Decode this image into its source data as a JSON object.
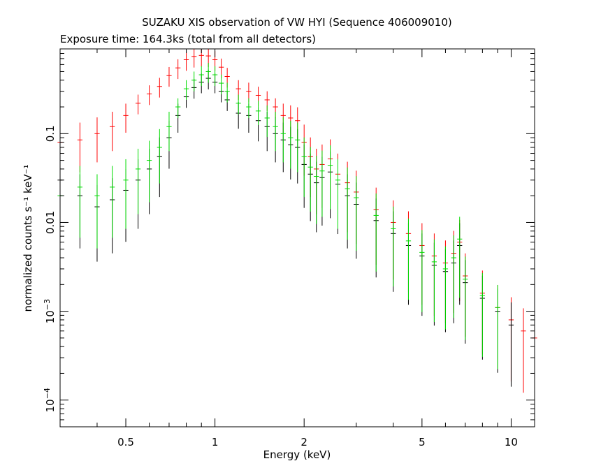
{
  "chart_data": {
    "type": "scatter",
    "title": "SUZAKU XIS observation of VW HYI (Sequence 406009010)",
    "subtitle": "Exposure time: 164.3ks (total from all detectors)",
    "xlabel": "Energy (keV)",
    "ylabel": "normalized counts s⁻¹ keV⁻¹",
    "x_scale": "log",
    "y_scale": "log",
    "xlim": [
      0.3,
      12
    ],
    "ylim": [
      5e-05,
      0.9
    ],
    "x_ticks": [
      {
        "value": 0.5,
        "label": "0.5"
      },
      {
        "value": 1,
        "label": "1"
      },
      {
        "value": 2,
        "label": "2"
      },
      {
        "value": 5,
        "label": "5"
      },
      {
        "value": 10,
        "label": "10"
      }
    ],
    "y_ticks": [
      {
        "value": 0.1,
        "mant": "0.1",
        "exp": ""
      },
      {
        "value": 0.01,
        "mant": "0.01",
        "exp": ""
      },
      {
        "value": 0.001,
        "mant": "10",
        "exp": "−3"
      },
      {
        "value": 0.0001,
        "mant": "10",
        "exp": "−4"
      }
    ],
    "grid": false,
    "series": [
      {
        "color": "#ff0000",
        "points": [
          [
            0.3,
            0.08
          ],
          [
            0.35,
            0.085
          ],
          [
            0.4,
            0.1
          ],
          [
            0.45,
            0.12
          ],
          [
            0.5,
            0.16
          ],
          [
            0.55,
            0.22
          ],
          [
            0.6,
            0.28
          ],
          [
            0.65,
            0.34
          ],
          [
            0.7,
            0.45
          ],
          [
            0.75,
            0.55
          ],
          [
            0.8,
            0.68
          ],
          [
            0.85,
            0.74
          ],
          [
            0.9,
            0.76
          ],
          [
            0.95,
            0.75
          ],
          [
            1.0,
            0.68
          ],
          [
            1.05,
            0.56
          ],
          [
            1.1,
            0.44
          ],
          [
            1.2,
            0.32
          ],
          [
            1.3,
            0.3
          ],
          [
            1.4,
            0.27
          ],
          [
            1.5,
            0.24
          ],
          [
            1.6,
            0.2
          ],
          [
            1.7,
            0.16
          ],
          [
            1.8,
            0.15
          ],
          [
            1.9,
            0.14
          ],
          [
            2.0,
            0.08
          ],
          [
            2.1,
            0.055
          ],
          [
            2.2,
            0.04
          ],
          [
            2.3,
            0.045
          ],
          [
            2.45,
            0.052
          ],
          [
            2.6,
            0.035
          ],
          [
            2.8,
            0.028
          ],
          [
            3.0,
            0.022
          ],
          [
            3.5,
            0.014
          ],
          [
            4.0,
            0.01
          ],
          [
            4.5,
            0.0075
          ],
          [
            5.0,
            0.0055
          ],
          [
            5.5,
            0.0042
          ],
          [
            6.0,
            0.0035
          ],
          [
            6.4,
            0.0045
          ],
          [
            6.7,
            0.006
          ],
          [
            7.0,
            0.0025
          ],
          [
            8.0,
            0.0016
          ],
          [
            9.0,
            0.0011
          ],
          [
            10.0,
            0.0008
          ],
          [
            11.0,
            0.0006
          ],
          [
            12.0,
            0.0005
          ]
        ]
      },
      {
        "color": "#000000",
        "points": [
          [
            0.3,
            0.03
          ],
          [
            0.35,
            0.02
          ],
          [
            0.4,
            0.015
          ],
          [
            0.45,
            0.018
          ],
          [
            0.5,
            0.023
          ],
          [
            0.55,
            0.03
          ],
          [
            0.6,
            0.04
          ],
          [
            0.65,
            0.055
          ],
          [
            0.7,
            0.09
          ],
          [
            0.75,
            0.16
          ],
          [
            0.8,
            0.26
          ],
          [
            0.85,
            0.33
          ],
          [
            0.9,
            0.38
          ],
          [
            0.95,
            0.42
          ],
          [
            1.0,
            0.38
          ],
          [
            1.05,
            0.3
          ],
          [
            1.1,
            0.24
          ],
          [
            1.2,
            0.17
          ],
          [
            1.3,
            0.16
          ],
          [
            1.4,
            0.14
          ],
          [
            1.5,
            0.12
          ],
          [
            1.6,
            0.1
          ],
          [
            1.7,
            0.085
          ],
          [
            1.8,
            0.075
          ],
          [
            1.9,
            0.07
          ],
          [
            2.0,
            0.045
          ],
          [
            2.1,
            0.035
          ],
          [
            2.2,
            0.028
          ],
          [
            2.3,
            0.032
          ],
          [
            2.45,
            0.037
          ],
          [
            2.6,
            0.027
          ],
          [
            2.8,
            0.02
          ],
          [
            3.0,
            0.016
          ],
          [
            3.5,
            0.0105
          ],
          [
            4.0,
            0.0075
          ],
          [
            4.5,
            0.0055
          ],
          [
            5.0,
            0.0042
          ],
          [
            5.5,
            0.0033
          ],
          [
            6.0,
            0.0028
          ],
          [
            6.4,
            0.0035
          ],
          [
            6.7,
            0.0055
          ],
          [
            7.0,
            0.0021
          ],
          [
            8.0,
            0.0014
          ],
          [
            9.0,
            0.001
          ],
          [
            10.0,
            0.0007
          ]
        ]
      },
      {
        "color": "#00dd00",
        "points": [
          [
            0.3,
            0.02
          ],
          [
            0.35,
            0.025
          ],
          [
            0.4,
            0.02
          ],
          [
            0.45,
            0.025
          ],
          [
            0.5,
            0.03
          ],
          [
            0.55,
            0.04
          ],
          [
            0.6,
            0.05
          ],
          [
            0.65,
            0.07
          ],
          [
            0.7,
            0.12
          ],
          [
            0.75,
            0.2
          ],
          [
            0.8,
            0.32
          ],
          [
            0.85,
            0.4
          ],
          [
            0.9,
            0.46
          ],
          [
            0.95,
            0.5
          ],
          [
            1.0,
            0.46
          ],
          [
            1.05,
            0.37
          ],
          [
            1.1,
            0.3
          ],
          [
            1.2,
            0.22
          ],
          [
            1.3,
            0.2
          ],
          [
            1.4,
            0.18
          ],
          [
            1.5,
            0.15
          ],
          [
            1.6,
            0.12
          ],
          [
            1.7,
            0.1
          ],
          [
            1.8,
            0.09
          ],
          [
            1.9,
            0.085
          ],
          [
            2.0,
            0.055
          ],
          [
            2.1,
            0.042
          ],
          [
            2.2,
            0.033
          ],
          [
            2.3,
            0.038
          ],
          [
            2.45,
            0.044
          ],
          [
            2.6,
            0.03
          ],
          [
            2.8,
            0.024
          ],
          [
            3.0,
            0.019
          ],
          [
            3.5,
            0.012
          ],
          [
            4.0,
            0.0085
          ],
          [
            4.5,
            0.0062
          ],
          [
            5.0,
            0.0046
          ],
          [
            5.5,
            0.0036
          ],
          [
            6.0,
            0.003
          ],
          [
            6.4,
            0.004
          ],
          [
            6.7,
            0.0065
          ],
          [
            7.0,
            0.0023
          ],
          [
            8.0,
            0.0015
          ],
          [
            9.0,
            0.0011
          ]
        ]
      }
    ]
  }
}
